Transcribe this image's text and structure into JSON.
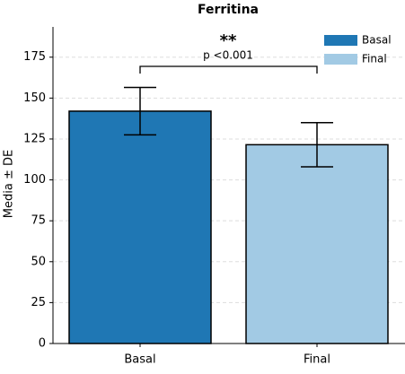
{
  "chart_data": {
    "type": "bar",
    "title": "Ferritina",
    "ylabel": "Media ± DE",
    "categories": [
      "Basal",
      "Final"
    ],
    "values": [
      142,
      121.5
    ],
    "errors": [
      14.5,
      13.5
    ],
    "colors": [
      "#1f77b4",
      "#a2cae4"
    ],
    "ylim": [
      0,
      193.5
    ],
    "yticks": [
      0,
      25,
      50,
      75,
      100,
      125,
      150,
      175
    ],
    "grid": true,
    "legend": "upper right",
    "annotation": {
      "stars": "**",
      "text": "p <0.001"
    }
  }
}
